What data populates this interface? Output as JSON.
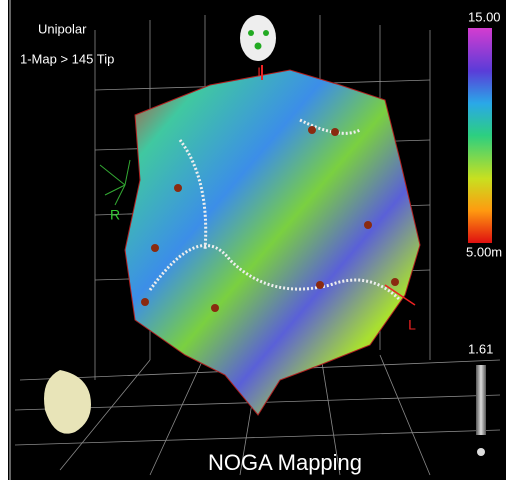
{
  "overlay": {
    "mode": "Unipolar",
    "map": "1-Map > 145 Tip"
  },
  "colorbar": {
    "max_label": "15.00",
    "min_label": "5.00m"
  },
  "slider": {
    "value_label": "1.61"
  },
  "orientation": {
    "inferior": "I",
    "right": "R",
    "left": "L"
  },
  "caption": "NOGA Mapping"
}
